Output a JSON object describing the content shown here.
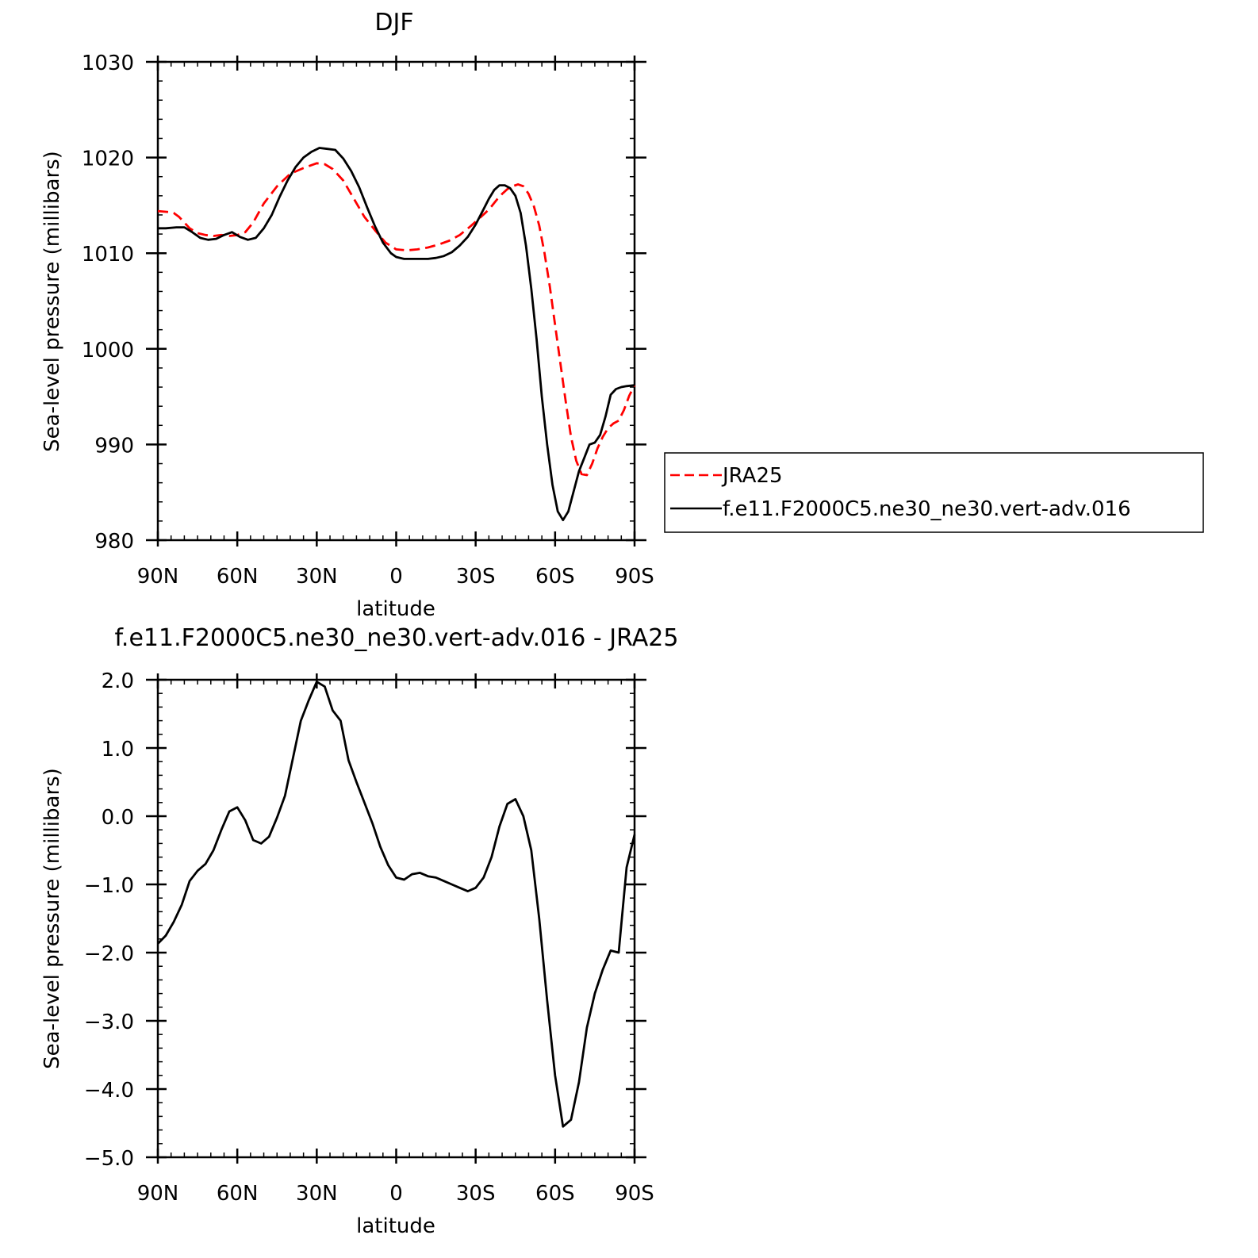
{
  "chart_data": [
    {
      "type": "line",
      "title": "DJF",
      "xlabel": "latitude",
      "ylabel": "Sea-level pressure (millibars)",
      "x_tick_labels": [
        "90N",
        "60N",
        "30N",
        "0",
        "30S",
        "60S",
        "90S"
      ],
      "x_tick_values": [
        90,
        60,
        30,
        0,
        -30,
        -60,
        -90
      ],
      "y_tick_labels": [
        "1030",
        "1020",
        "1010",
        "1000",
        "990",
        "980"
      ],
      "y_tick_values": [
        1030,
        1020,
        1010,
        1000,
        990,
        980
      ],
      "xlim": [
        90,
        -90
      ],
      "ylim": [
        980,
        1030
      ],
      "legend_position": "right",
      "grid": false,
      "series": [
        {
          "name": "JRA25",
          "color": "#ff0000",
          "dash": "dashed",
          "x": [
            90,
            86,
            84,
            82,
            78,
            75,
            72,
            69,
            66,
            63,
            60,
            57,
            54,
            50,
            45,
            40,
            35,
            30,
            27,
            24,
            20,
            16,
            12,
            8,
            4,
            0,
            -4,
            -8,
            -12,
            -16,
            -20,
            -24,
            -28,
            -32,
            -34,
            -36,
            -38,
            -40,
            -42,
            -44,
            -46,
            -48,
            -50,
            -52,
            -54,
            -56,
            -58,
            -60,
            -62,
            -64,
            -66,
            -68,
            -70,
            -72,
            -74,
            -76,
            -78,
            -80,
            -82,
            -84,
            -86,
            -88,
            -90
          ],
          "y": [
            1014.4,
            1014.3,
            1014.2,
            1013.8,
            1012.6,
            1012.1,
            1011.9,
            1011.8,
            1011.9,
            1011.8,
            1011.9,
            1012.2,
            1013.2,
            1015.2,
            1017.0,
            1018.3,
            1018.9,
            1019.4,
            1019.3,
            1018.8,
            1017.6,
            1015.7,
            1013.8,
            1012.4,
            1011.1,
            1010.4,
            1010.3,
            1010.4,
            1010.6,
            1010.9,
            1011.3,
            1011.9,
            1012.8,
            1013.8,
            1014.3,
            1014.9,
            1015.6,
            1016.2,
            1016.7,
            1017.0,
            1017.2,
            1017.0,
            1016.2,
            1014.9,
            1012.9,
            1010.0,
            1006.5,
            1002.5,
            998.5,
            994.5,
            990.8,
            988.3,
            986.9,
            986.8,
            988.0,
            989.6,
            990.8,
            991.7,
            992.2,
            992.5,
            993.6,
            995.1,
            996.2
          ]
        },
        {
          "name": "f.e11.F2000C5.ne30_ne30.vert-adv.016",
          "color": "#000000",
          "dash": "solid",
          "x": [
            90,
            87,
            83,
            80,
            77,
            74,
            71,
            68,
            65,
            62,
            59,
            56,
            53,
            50,
            47,
            44,
            41,
            38,
            35,
            32,
            29,
            26,
            23,
            20,
            17,
            14,
            11,
            8,
            5,
            2,
            0,
            -3,
            -6,
            -9,
            -12,
            -15,
            -18,
            -21,
            -24,
            -27,
            -30,
            -33,
            -35,
            -37,
            -39,
            -41,
            -43,
            -45,
            -47,
            -49,
            -51,
            -53,
            -55,
            -57,
            -59,
            -61,
            -63,
            -65,
            -67,
            -69,
            -71,
            -73,
            -75,
            -77,
            -79,
            -81,
            -83,
            -85,
            -87,
            -90
          ],
          "y": [
            1012.6,
            1012.6,
            1012.7,
            1012.7,
            1012.2,
            1011.6,
            1011.4,
            1011.5,
            1011.9,
            1012.2,
            1011.7,
            1011.4,
            1011.6,
            1012.6,
            1014.0,
            1015.9,
            1017.6,
            1019.0,
            1020.0,
            1020.6,
            1021.0,
            1020.9,
            1020.8,
            1019.9,
            1018.6,
            1016.9,
            1014.8,
            1012.8,
            1011.1,
            1010.0,
            1009.6,
            1009.4,
            1009.4,
            1009.4,
            1009.4,
            1009.5,
            1009.7,
            1010.1,
            1010.8,
            1011.7,
            1013.0,
            1014.6,
            1015.7,
            1016.6,
            1017.1,
            1017.1,
            1016.8,
            1016.0,
            1014.2,
            1010.8,
            1006.3,
            1001.0,
            995.0,
            990.0,
            985.8,
            983.0,
            982.1,
            983.0,
            985.1,
            987.2,
            988.6,
            990.0,
            990.2,
            991.0,
            992.9,
            995.2,
            995.8,
            996.0,
            996.1,
            996.2
          ]
        }
      ]
    },
    {
      "type": "line",
      "title": "f.e11.F2000C5.ne30_ne30.vert-adv.016 - JRA25",
      "xlabel": "latitude",
      "ylabel": "Sea-level pressure (millibars)",
      "x_tick_labels": [
        "90N",
        "60N",
        "30N",
        "0",
        "30S",
        "60S",
        "90S"
      ],
      "x_tick_values": [
        90,
        60,
        30,
        0,
        -30,
        -60,
        -90
      ],
      "y_tick_labels": [
        "2.0",
        "1.0",
        "0.0",
        "−1.0",
        "−2.0",
        "−3.0",
        "−4.0",
        "−5.0"
      ],
      "y_tick_values": [
        2,
        1,
        0,
        -1,
        -2,
        -3,
        -4,
        -5
      ],
      "xlim": [
        90,
        -90
      ],
      "ylim": [
        -5,
        2
      ],
      "grid": false,
      "series": [
        {
          "color": "#000000",
          "dash": "solid",
          "x": [
            90,
            87,
            84,
            81,
            78,
            75,
            72,
            69,
            66,
            63,
            60,
            57,
            54,
            51,
            48,
            45,
            42,
            39,
            36,
            33,
            30,
            27,
            24,
            21,
            18,
            15,
            12,
            9,
            6,
            3,
            0,
            -3,
            -6,
            -9,
            -12,
            -15,
            -18,
            -21,
            -24,
            -27,
            -30,
            -33,
            -36,
            -39,
            -42,
            -45,
            -48,
            -51,
            -54,
            -57,
            -60,
            -63,
            -66,
            -69,
            -72,
            -75,
            -78,
            -81,
            -84,
            -87,
            -90
          ],
          "y": [
            -1.87,
            -1.75,
            -1.55,
            -1.3,
            -0.95,
            -0.8,
            -0.7,
            -0.5,
            -0.2,
            0.07,
            0.13,
            -0.06,
            -0.35,
            -0.4,
            -0.3,
            -0.02,
            0.3,
            0.85,
            1.4,
            1.7,
            1.97,
            1.9,
            1.55,
            1.4,
            0.82,
            0.5,
            0.2,
            -0.1,
            -0.45,
            -0.72,
            -0.9,
            -0.93,
            -0.85,
            -0.83,
            -0.88,
            -0.9,
            -0.95,
            -1.0,
            -1.05,
            -1.1,
            -1.05,
            -0.9,
            -0.6,
            -0.15,
            0.18,
            0.25,
            0.0,
            -0.5,
            -1.5,
            -2.7,
            -3.8,
            -4.55,
            -4.45,
            -3.9,
            -3.1,
            -2.6,
            -2.25,
            -1.97,
            -2.0,
            -0.75,
            -0.27
          ]
        }
      ]
    }
  ]
}
